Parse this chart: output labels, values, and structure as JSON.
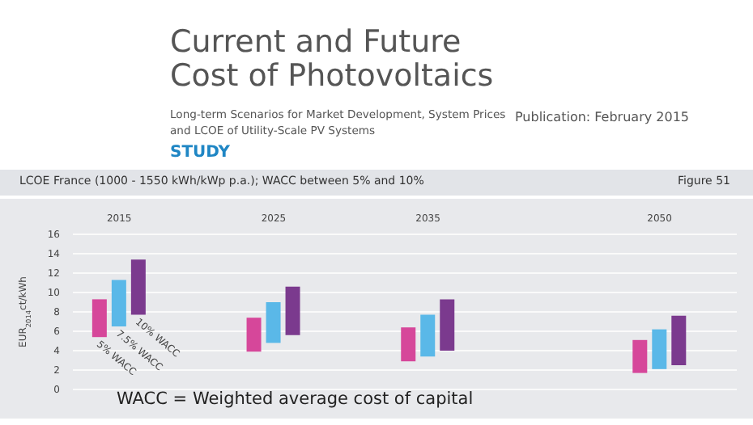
{
  "chart_data": {
    "type": "bar",
    "title": "LCOE France (1000 - 1550 kWh/kWp p.a.); WACC between 5% and 10%",
    "annotations": [
      "Current and Future Cost of Photovoltaics",
      "Long-term Scenarios for Market Development, System Prices and LCOE of Utility-Scale PV Systems",
      "STUDY",
      "Publication: February 2015",
      "Figure 51",
      "WACC = Weighted average cost of capital"
    ],
    "ylabel": "EUR$_{2014}$ct/kWh",
    "x": [
      2015,
      2025,
      2035,
      2050
    ],
    "xlim": [
      2012,
      2055
    ],
    "xticks": [
      2015,
      2025,
      2035,
      2050
    ],
    "ylim": [
      0,
      16
    ],
    "yticks": [
      0,
      2,
      4,
      6,
      8,
      10,
      12,
      14,
      16
    ],
    "series": [
      {
        "name": "5% WACC",
        "color": "#d6479a",
        "base": [
          5.4,
          3.9,
          2.9,
          1.7
        ],
        "values": [
          3.9,
          3.5,
          3.5,
          3.4
        ]
      },
      {
        "name": "7.5% WACC",
        "color": "#5ab8e8",
        "base": [
          6.5,
          4.8,
          3.4,
          2.1
        ],
        "values": [
          4.8,
          4.2,
          4.3,
          4.1
        ]
      },
      {
        "name": "10% WACC",
        "color": "#7b3a8e",
        "base": [
          7.7,
          5.6,
          4.0,
          2.5
        ],
        "values": [
          5.7,
          5.0,
          5.3,
          5.1
        ]
      }
    ],
    "grid": "y",
    "legend": false
  }
}
